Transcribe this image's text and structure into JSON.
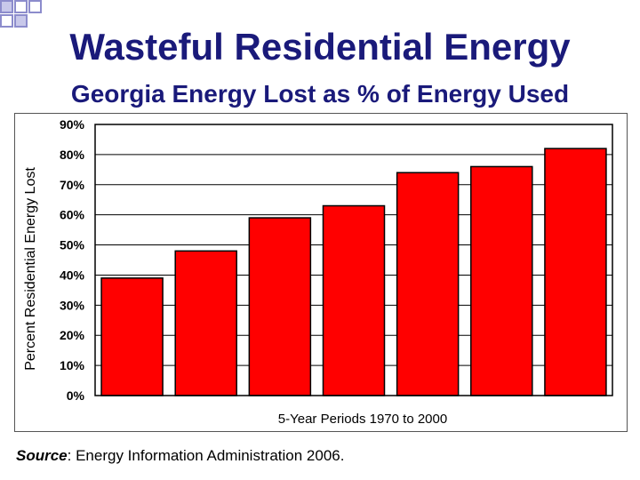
{
  "slide": {
    "title": "Wasteful Residential Energy",
    "subtitle": "Georgia Energy Lost as % of Energy Used",
    "source_label": "Source",
    "source_text": ": Energy Information Administration 2006."
  },
  "colors": {
    "title": "#1a1a7a",
    "bar": "#ff0000",
    "bar_border": "#000000",
    "corner_squares": "#8c8ccc"
  },
  "chart_data": {
    "type": "bar",
    "title": "",
    "xlabel": "5-Year Periods 1970 to 2000",
    "ylabel": "Percent Residential Energy Lost",
    "categories": [
      "",
      "",
      "",
      "",
      "",
      "",
      ""
    ],
    "values": [
      39,
      48,
      59,
      63,
      74,
      76,
      82
    ],
    "ylim": [
      0,
      90
    ],
    "yticks": [
      0,
      10,
      20,
      30,
      40,
      50,
      60,
      70,
      80,
      90
    ],
    "ytick_labels": [
      "0%",
      "10%",
      "20%",
      "30%",
      "40%",
      "50%",
      "60%",
      "70%",
      "80%",
      "90%"
    ],
    "grid": true
  }
}
